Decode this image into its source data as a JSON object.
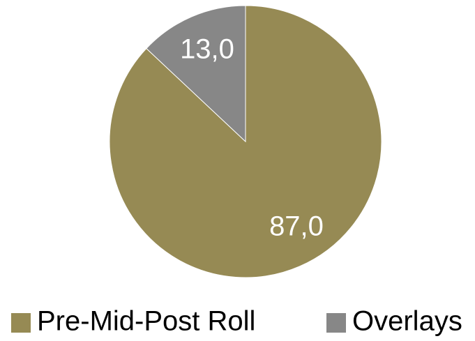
{
  "chart_data": {
    "type": "pie",
    "categories": [
      "Pre-Mid-Post Roll",
      "Overlays"
    ],
    "values": [
      87.0,
      13.0
    ],
    "data_labels": [
      "87,0",
      "13,0"
    ],
    "colors": [
      "#968A54",
      "#878787"
    ],
    "legend_position": "bottom",
    "start_angle_deg": 0,
    "direction": "clockwise"
  }
}
